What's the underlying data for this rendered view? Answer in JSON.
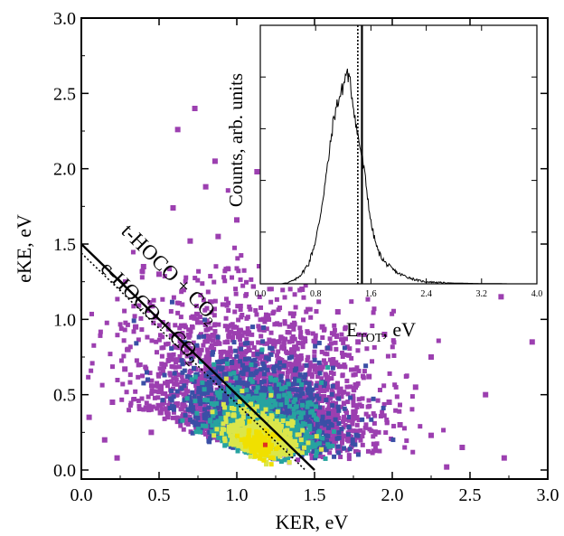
{
  "chart_data": [
    {
      "type": "scatter",
      "xlabel": "KER, eV",
      "ylabel": "eKE, eV",
      "xlim": [
        0,
        3.0
      ],
      "ylim": [
        0,
        3.0
      ],
      "x_ticks": [
        "0.0",
        "0.5",
        "1.0",
        "1.5",
        "2.0",
        "2.5",
        "3.0"
      ],
      "y_ticks": [
        "0.0",
        "0.5",
        "1.0",
        "1.5",
        "2.0",
        "2.5",
        "3.0"
      ],
      "annotations": [
        {
          "text_main": "t-HOCO + CO",
          "sub": "2",
          "line": {
            "type": "solid",
            "x_intercept": 1.5,
            "y_intercept": 1.5
          }
        },
        {
          "text_main": "c-HOCO + CO",
          "sub": "2",
          "line": {
            "type": "dotted",
            "x_intercept": 1.44,
            "y_intercept": 1.44
          }
        }
      ],
      "density_peak": {
        "x": 1.15,
        "y": 0.17
      },
      "colors": {
        "low": "#9c3fb0",
        "mid": "#3a4fa6",
        "mid2": "#27a3a0",
        "high": "#dbe64b",
        "peak": "#f0e000"
      },
      "sparse_points": [
        [
          0.73,
          2.4
        ],
        [
          0.62,
          2.26
        ],
        [
          0.8,
          1.88
        ],
        [
          0.59,
          1.74
        ],
        [
          1.13,
          1.98
        ],
        [
          0.86,
          2.05
        ],
        [
          1.3,
          1.78
        ],
        [
          1.0,
          1.66
        ],
        [
          2.45,
          1.4
        ],
        [
          2.7,
          1.15
        ],
        [
          2.9,
          0.85
        ],
        [
          2.6,
          0.5
        ],
        [
          2.45,
          0.15
        ],
        [
          2.25,
          0.23
        ],
        [
          2.15,
          0.55
        ],
        [
          1.95,
          0.9
        ],
        [
          2.05,
          0.3
        ],
        [
          0.3,
          0.8
        ],
        [
          0.2,
          0.45
        ],
        [
          0.4,
          1.35
        ],
        [
          0.5,
          1.3
        ],
        [
          0.28,
          0.67
        ],
        [
          0.05,
          0.35
        ],
        [
          0.15,
          0.2
        ],
        [
          0.7,
          1.52
        ],
        [
          1.65,
          1.05
        ],
        [
          1.78,
          0.85
        ],
        [
          1.42,
          1.2
        ],
        [
          1.2,
          1.42
        ],
        [
          0.88,
          1.55
        ],
        [
          0.35,
          0.95
        ],
        [
          1.55,
          0.95
        ],
        [
          1.85,
          0.62
        ],
        [
          1.98,
          0.45
        ],
        [
          2.35,
          0.02
        ],
        [
          1.75,
          0.35
        ],
        [
          2.25,
          0.75
        ],
        [
          0.45,
          0.25
        ],
        [
          0.23,
          0.08
        ],
        [
          2.72,
          0.08
        ]
      ]
    },
    {
      "type": "line",
      "xlabel_main": "E",
      "xlabel_sub": "TOT",
      "xlabel_unit": ", eV",
      "ylabel": "Counts, arb. units",
      "xlim": [
        0.0,
        4.0
      ],
      "x_ticks": [
        "0.0",
        "0.8",
        "1.6",
        "2.4",
        "3.2",
        "4.0"
      ],
      "vlines": [
        {
          "x": 1.41,
          "style": "dotted"
        },
        {
          "x": 1.47,
          "style": "solid"
        }
      ],
      "x": [
        0.0,
        0.1,
        0.2,
        0.3,
        0.4,
        0.5,
        0.6,
        0.7,
        0.8,
        0.85,
        0.9,
        0.95,
        1.0,
        1.05,
        1.1,
        1.15,
        1.2,
        1.25,
        1.3,
        1.35,
        1.4,
        1.45,
        1.5,
        1.55,
        1.6,
        1.65,
        1.7,
        1.8,
        1.9,
        2.0,
        2.1,
        2.2,
        2.3,
        2.4,
        2.6,
        2.8,
        3.0,
        3.2,
        3.4,
        3.6,
        3.8,
        4.0
      ],
      "values": [
        0.0,
        0.0,
        0.0,
        0.0,
        0.005,
        0.015,
        0.04,
        0.08,
        0.17,
        0.24,
        0.33,
        0.42,
        0.52,
        0.63,
        0.7,
        0.74,
        0.78,
        0.84,
        0.79,
        0.7,
        0.6,
        0.53,
        0.45,
        0.35,
        0.24,
        0.18,
        0.13,
        0.085,
        0.06,
        0.04,
        0.03,
        0.02,
        0.012,
        0.008,
        0.005,
        0.003,
        0.002,
        0.001,
        0.001,
        0.0,
        0.0,
        0.0
      ]
    }
  ]
}
